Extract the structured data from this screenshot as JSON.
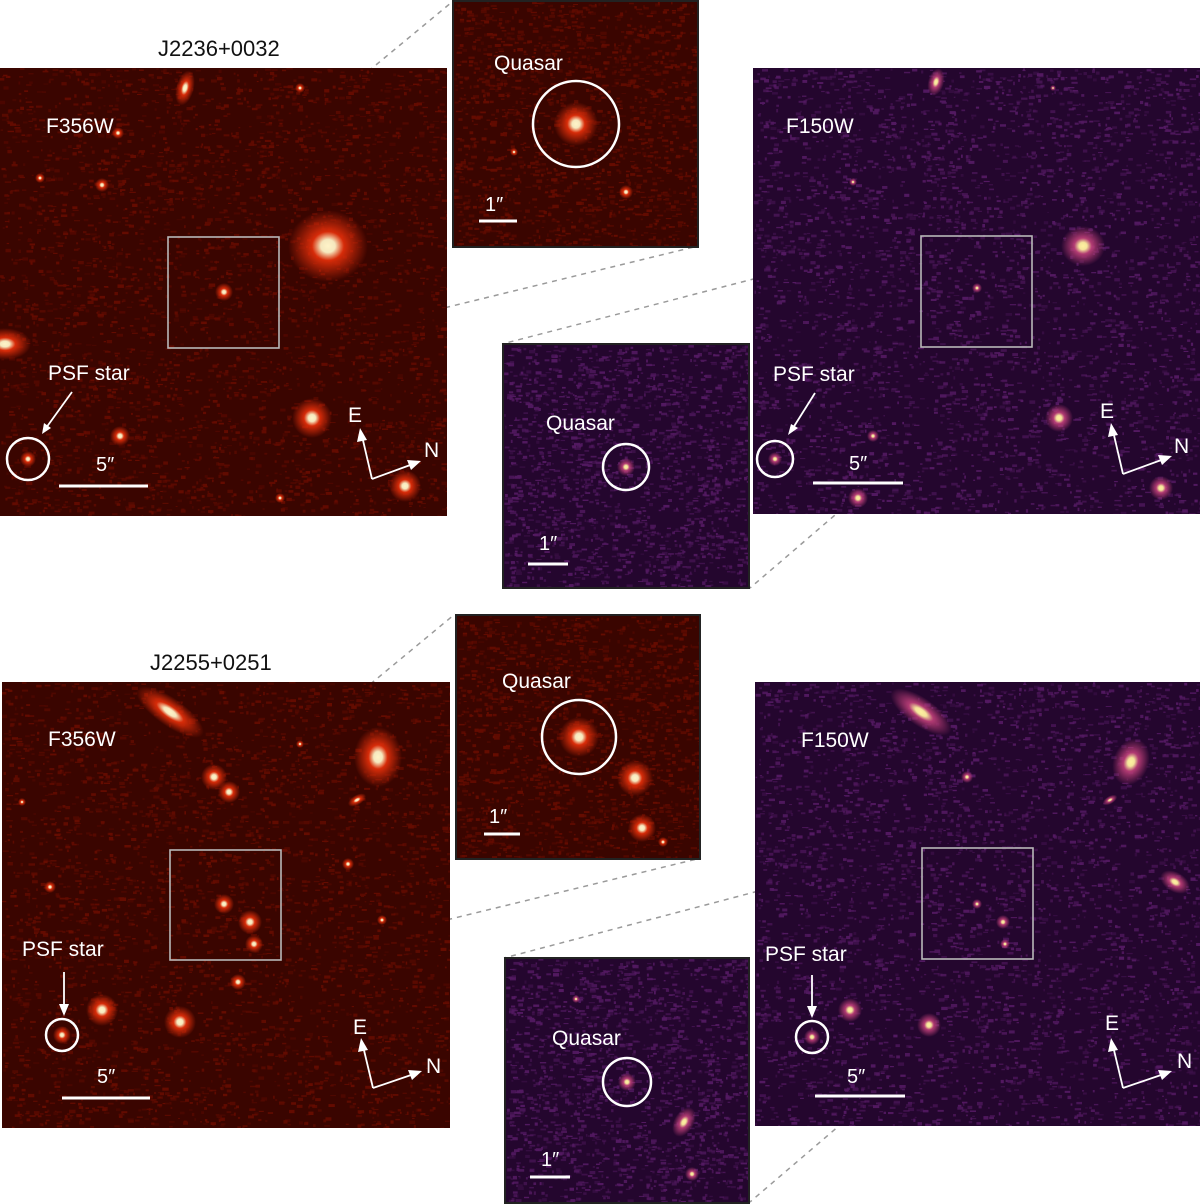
{
  "figure": {
    "sets": [
      {
        "target": "J2236+0032",
        "wide_red": {
          "filter": "F356W",
          "psf_label": "PSF star",
          "scale": "5″",
          "compass_e": "E",
          "compass_n": "N"
        },
        "inset_red": {
          "label": "Quasar",
          "scale": "1″"
        },
        "inset_purple": {
          "label": "Quasar",
          "scale": "1″"
        },
        "wide_purple": {
          "filter": "F150W",
          "psf_label": "PSF star",
          "scale": "5″",
          "compass_e": "E",
          "compass_n": "N"
        }
      },
      {
        "target": "J2255+0251",
        "wide_red": {
          "filter": "F356W",
          "psf_label": "PSF star",
          "scale": "5″",
          "compass_e": "E",
          "compass_n": "N"
        },
        "inset_red": {
          "label": "Quasar",
          "scale": "1″"
        },
        "inset_purple": {
          "label": "Quasar",
          "scale": "1″"
        },
        "wide_purple": {
          "filter": "F150W",
          "psf_label": "PSF star",
          "scale": "5″",
          "compass_e": "E",
          "compass_n": "N"
        }
      }
    ],
    "colors": {
      "red_background": "#3a0500",
      "red_noise": "#8a1200",
      "red_source_core": "#fff4c8",
      "red_source_glow": "#e8300a",
      "purple_background": "#24062e",
      "purple_noise": "#7a2a8c",
      "purple_source_core": "#fff0a0",
      "purple_source_glow": "#c0407a",
      "annotation": "#ffffff",
      "box_outline": "#b8b8b8",
      "connector": "#9a9a9a"
    }
  }
}
